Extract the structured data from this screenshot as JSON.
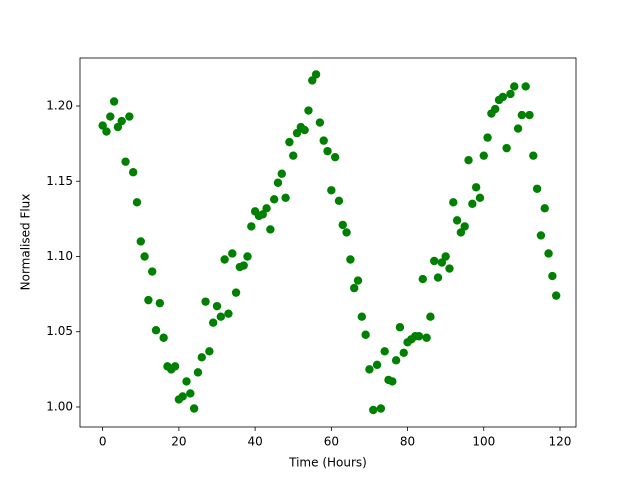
{
  "chart_data": {
    "type": "scatter",
    "xlabel": "Time (Hours)",
    "ylabel": "Normalised Flux",
    "color": "#008000",
    "xlim": [
      -5.95,
      124.2
    ],
    "ylim": [
      0.9867,
      1.2319
    ],
    "xticks": [
      0,
      20,
      40,
      60,
      80,
      100,
      120
    ],
    "yticks": [
      {
        "value": 1.0,
        "label": "1.00"
      },
      1.05,
      {
        "value": 1.1,
        "label": "1.10"
      },
      1.15,
      {
        "value": 1.2,
        "label": "1.20"
      }
    ],
    "x": [
      0,
      1,
      2,
      3,
      4,
      5,
      6,
      7,
      8,
      9,
      10,
      11,
      12,
      13,
      14,
      15,
      16,
      17,
      18,
      19,
      20,
      21,
      22,
      23,
      24,
      25,
      26,
      27,
      28,
      29,
      30,
      31,
      32,
      33,
      34,
      35,
      36,
      37,
      38,
      39,
      40,
      41,
      42,
      43,
      44,
      45,
      46,
      47,
      48,
      49,
      50,
      51,
      52,
      53,
      54,
      55,
      56,
      57,
      58,
      59,
      60,
      61,
      62,
      63,
      64,
      65,
      66,
      67,
      68,
      69,
      70,
      71,
      72,
      73,
      74,
      75,
      76,
      77,
      78,
      79,
      80,
      81,
      82,
      83,
      84,
      85,
      86,
      87,
      88,
      89,
      90,
      91,
      92,
      93,
      94,
      95,
      96,
      97,
      98,
      99,
      100,
      101,
      102,
      103,
      104,
      105,
      106,
      107,
      108,
      109,
      110,
      111,
      112,
      113,
      114,
      115,
      116,
      117,
      118,
      119
    ],
    "values": [
      1.187,
      1.183,
      1.193,
      1.203,
      1.186,
      1.19,
      1.163,
      1.193,
      1.156,
      1.136,
      1.11,
      1.1,
      1.071,
      1.09,
      1.051,
      1.069,
      1.046,
      1.027,
      1.025,
      1.027,
      1.005,
      1.007,
      1.017,
      1.009,
      0.999,
      1.023,
      1.033,
      1.07,
      1.037,
      1.056,
      1.067,
      1.06,
      1.098,
      1.062,
      1.102,
      1.076,
      1.093,
      1.094,
      1.1,
      1.12,
      1.13,
      1.127,
      1.128,
      1.132,
      1.118,
      1.138,
      1.149,
      1.155,
      1.139,
      1.176,
      1.167,
      1.182,
      1.186,
      1.184,
      1.197,
      1.217,
      1.221,
      1.189,
      1.177,
      1.17,
      1.144,
      1.166,
      1.137,
      1.121,
      1.116,
      1.098,
      1.079,
      1.084,
      1.06,
      1.048,
      1.025,
      0.998,
      1.028,
      0.999,
      1.037,
      1.018,
      1.017,
      1.031,
      1.053,
      1.036,
      1.043,
      1.045,
      1.047,
      1.047,
      1.085,
      1.046,
      1.06,
      1.097,
      1.086,
      1.096,
      1.1,
      1.092,
      1.136,
      1.124,
      1.116,
      1.12,
      1.164,
      1.135,
      1.146,
      1.139,
      1.167,
      1.179,
      1.195,
      1.198,
      1.204,
      1.206,
      1.172,
      1.208,
      1.213,
      1.185,
      1.194,
      1.213,
      1.194,
      1.167,
      1.145,
      1.114,
      1.132,
      1.102,
      1.087,
      1.074
    ]
  }
}
